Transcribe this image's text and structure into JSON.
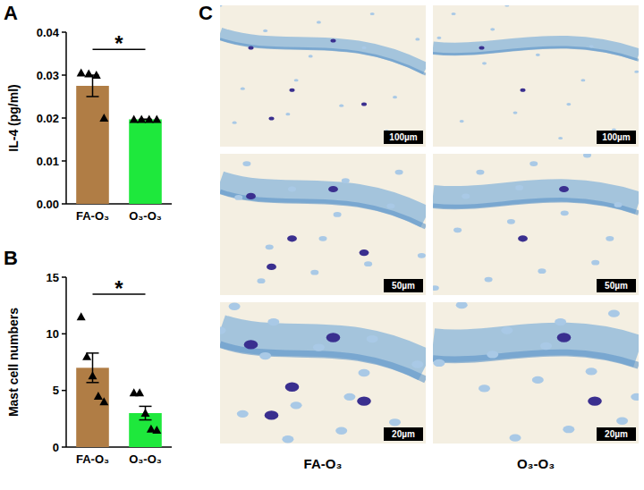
{
  "panel_labels": [
    "A",
    "B",
    "C"
  ],
  "chart_data": [
    {
      "type": "bar",
      "y_label": "IL-4 (pg/ml)",
      "categories": [
        "FA-O₃",
        "O₃-O₃"
      ],
      "values": [
        0.0275,
        0.0197
      ],
      "errors": [
        0.0025,
        0
      ],
      "points": [
        [
          0.0305,
          0.0303,
          0.03,
          0.02
        ],
        [
          0.0197,
          0.0197,
          0.0197,
          0.0197
        ]
      ],
      "colors": [
        "#b07d45",
        "#1ee83c"
      ],
      "ylim": [
        0,
        0.04
      ],
      "yticks": [
        {
          "value": 0,
          "label": "0.00"
        },
        {
          "value": 0.01,
          "label": "0.01"
        },
        {
          "value": 0.02,
          "label": "0.02"
        },
        {
          "value": 0.03,
          "label": "0.03"
        },
        {
          "value": 0.04,
          "label": "0.04"
        }
      ],
      "annotation": "*"
    },
    {
      "type": "bar",
      "y_label": "Mast cell numbers",
      "categories": [
        "FA-O₃",
        "O₃-O₃"
      ],
      "values": [
        7.0,
        3.0
      ],
      "errors": [
        1.3,
        0.6
      ],
      "points": [
        [
          11.5,
          8.0,
          6.3,
          4.5,
          4.0
        ],
        [
          4.8,
          4.8,
          3.0,
          1.6,
          1.5
        ]
      ],
      "colors": [
        "#b07d45",
        "#1ee83c"
      ],
      "ylim": [
        0,
        15
      ],
      "yticks": [
        0,
        5,
        10,
        15
      ],
      "annotation": "*"
    }
  ],
  "micrographs": {
    "columns": [
      "FA-O₃",
      "O₃-O₃"
    ],
    "scale_bars": [
      "100µm",
      "50µm",
      "20µm"
    ]
  }
}
